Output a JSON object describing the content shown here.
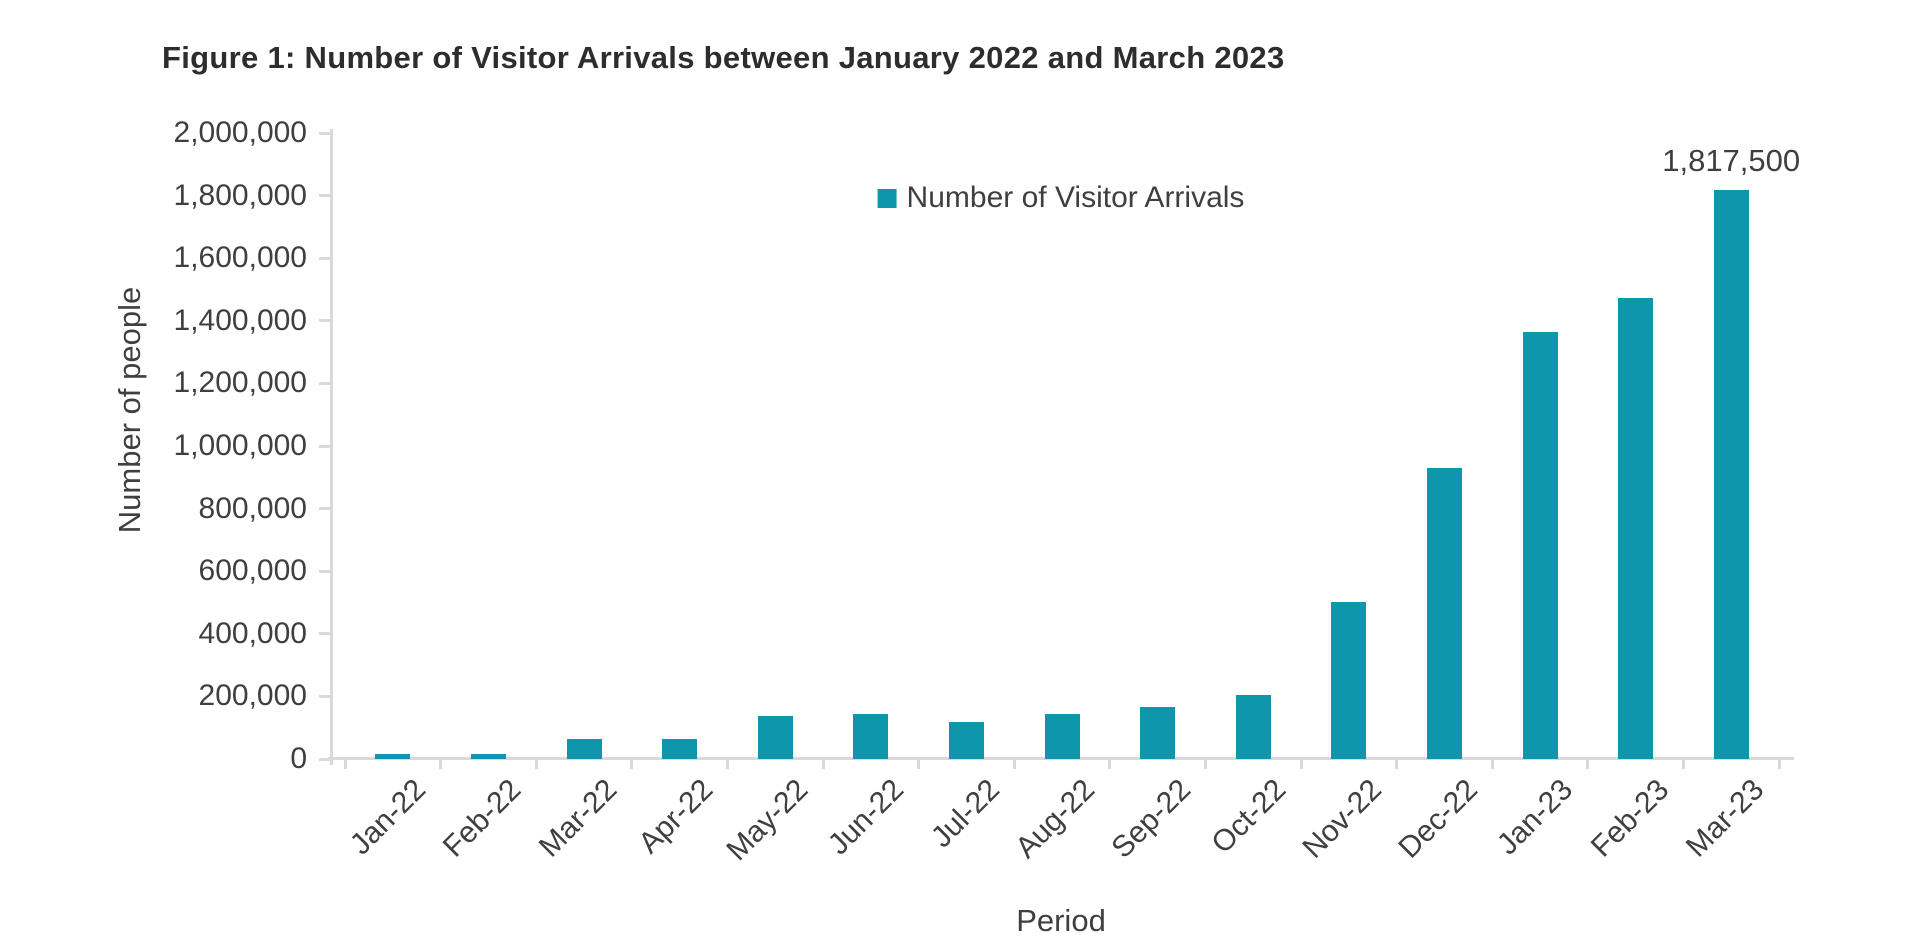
{
  "figure": {
    "title": "Figure 1: Number of Visitor Arrivals between January 2022 and March 2023"
  },
  "chart_data": {
    "type": "bar",
    "title": "Figure 1: Number of Visitor Arrivals between January 2022 and March 2023",
    "xlabel": "Period",
    "ylabel": "Number of people",
    "series_name": "Number of Visitor Arrivals",
    "legend_position": "top-center",
    "grid": false,
    "ylim": [
      0,
      2000000
    ],
    "ytick_step": 200000,
    "ytick_labels": [
      "2,000,000",
      "1,800,000",
      "1,600,000",
      "1,400,000",
      "1,200,000",
      "1,000,000",
      "800,000",
      "600,000",
      "400,000",
      "200,000",
      "0"
    ],
    "categories": [
      "Jan-22",
      "Feb-22",
      "Mar-22",
      "Apr-22",
      "May-22",
      "Jun-22",
      "Jul-22",
      "Aug-22",
      "Sep-22",
      "Oct-22",
      "Nov-22",
      "Dec-22",
      "Jan-23",
      "Feb-23",
      "Mar-23"
    ],
    "values": [
      17500,
      16500,
      62500,
      65000,
      137500,
      145000,
      117500,
      142500,
      165000,
      205000,
      500000,
      930000,
      1365000,
      1472500,
      1817500
    ],
    "annotations": [
      {
        "category": "Mar-23",
        "value": 1817500,
        "text": "1,817,500"
      }
    ],
    "bar_color": "#0e96ac",
    "axis_color": "#d9d9d9",
    "text_color": "#3f3f3f"
  }
}
